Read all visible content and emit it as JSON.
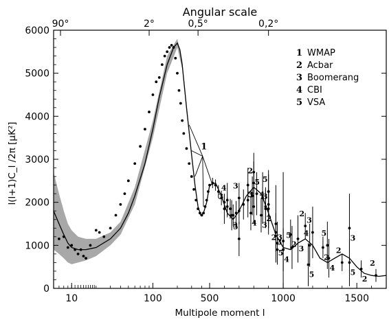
{
  "chart_data": {
    "type": "scatter",
    "title": "Angular scale",
    "xlabel": "Multipole moment l",
    "ylabel": "l(l+1)C_l /2π [μK²]",
    "x_scale": "log-linear (logarithmic below l≈500, linear above)",
    "xlim": [
      6,
      1700
    ],
    "ylim": [
      0,
      6000
    ],
    "x_ticks": [
      {
        "value": 10,
        "label": "10"
      },
      {
        "value": 100,
        "label": "100"
      },
      {
        "value": 500,
        "label": "500"
      },
      {
        "value": 1000,
        "label": "1000"
      },
      {
        "value": 1500,
        "label": "1500"
      }
    ],
    "y_ticks": [
      {
        "value": 0,
        "label": "0"
      },
      {
        "value": 1000,
        "label": "1000"
      },
      {
        "value": 2000,
        "label": "2000"
      },
      {
        "value": 3000,
        "label": "3000"
      },
      {
        "value": 4000,
        "label": "4000"
      },
      {
        "value": 5000,
        "label": "5000"
      },
      {
        "value": 6000,
        "label": "6000"
      }
    ],
    "top_ticks": [
      {
        "value": 2,
        "label": "90°"
      },
      {
        "value": 90,
        "label": "2°"
      },
      {
        "value": 360,
        "label": "0,5°"
      },
      {
        "value": 900,
        "label": "0,2°"
      }
    ],
    "legend": {
      "position": "top-right",
      "entries": [
        {
          "key": "1",
          "name": "WMAP"
        },
        {
          "key": "2",
          "name": "Acbar"
        },
        {
          "key": "3",
          "name": "Boomerang"
        },
        {
          "key": "4",
          "name": "CBI"
        },
        {
          "key": "5",
          "name": "VSA"
        }
      ]
    },
    "model_curve": {
      "x": [
        6,
        7,
        8,
        9,
        10,
        12,
        15,
        20,
        30,
        40,
        50,
        60,
        80,
        100,
        120,
        150,
        180,
        200,
        215,
        230,
        260,
        300,
        330,
        360,
        390,
        420,
        460,
        500,
        540,
        580,
        620,
        660,
        700,
        750,
        800,
        850,
        900,
        950,
        1000,
        1050,
        1100,
        1150,
        1200,
        1250,
        1300,
        1350,
        1400,
        1450,
        1500,
        1550,
        1600,
        1650,
        1700
      ],
      "y": [
        1800,
        1500,
        1250,
        1050,
        950,
        900,
        900,
        950,
        1150,
        1400,
        1750,
        2150,
        2900,
        3700,
        4450,
        5200,
        5600,
        5700,
        5550,
        5200,
        4200,
        3100,
        2400,
        1900,
        1700,
        1750,
        2000,
        2400,
        2450,
        2150,
        1750,
        1600,
        1800,
        2150,
        2350,
        2200,
        1750,
        1250,
        950,
        900,
        1050,
        1150,
        1000,
        700,
        600,
        700,
        800,
        700,
        500,
        350,
        300,
        280,
        300
      ]
    },
    "cosmic_variance_band": {
      "x": [
        6,
        7,
        8,
        9,
        10,
        12,
        15,
        20,
        30,
        40,
        60,
        100,
        150,
        200,
        230,
        260,
        300
      ],
      "upper": [
        2700,
        2200,
        1800,
        1500,
        1350,
        1200,
        1150,
        1150,
        1300,
        1550,
        2350,
        3900,
        5400,
        5800,
        5300,
        4300,
        3150
      ],
      "lower": [
        900,
        800,
        700,
        600,
        560,
        600,
        650,
        750,
        1000,
        1250,
        1950,
        3500,
        5000,
        5600,
        5100,
        4100,
        3050
      ]
    },
    "series": [
      {
        "key": "1",
        "name": "WMAP",
        "x": [
          7,
          8,
          9,
          10,
          11,
          12,
          13,
          14,
          15,
          17,
          20,
          22,
          25,
          30,
          35,
          40,
          45,
          50,
          60,
          70,
          80,
          90,
          100,
          110,
          120,
          130,
          140,
          150,
          160,
          170,
          180,
          190,
          200,
          210,
          220,
          230,
          240,
          260,
          280,
          300,
          320,
          340,
          360,
          380,
          400,
          420,
          440,
          460,
          480,
          500,
          520,
          540,
          560,
          580,
          600,
          620,
          640,
          660,
          680,
          700,
          730,
          760,
          790,
          820,
          860,
          900,
          950,
          1000
        ],
        "y": [
          1150,
          1200,
          950,
          1000,
          900,
          800,
          900,
          750,
          700,
          1000,
          1350,
          1300,
          1200,
          1400,
          1700,
          1950,
          2200,
          2500,
          2900,
          3300,
          3700,
          4100,
          4500,
          4800,
          4900,
          5200,
          5400,
          5500,
          5600,
          5650,
          5600,
          5350,
          5000,
          4600,
          4300,
          3900,
          3600,
          3250,
          2900,
          2600,
          2300,
          2050,
          1850,
          1750,
          1700,
          1750,
          1900,
          2050,
          2250,
          2400,
          2450,
          2400,
          2250,
          2100,
          2000,
          1900,
          1850,
          1700,
          1750,
          1800,
          1950,
          2050,
          2150,
          2200,
          2100,
          1950,
          1500,
          1100
        ],
        "err": [
          700,
          650,
          600,
          550,
          500,
          480,
          460,
          440,
          420,
          380,
          350,
          330,
          300,
          280,
          250,
          230,
          210,
          190,
          170,
          150,
          140,
          130,
          120,
          110,
          100,
          90,
          85,
          80,
          75,
          70,
          70,
          70,
          70,
          70,
          70,
          70,
          70,
          70,
          70,
          70,
          70,
          70,
          70,
          70,
          70,
          70,
          80,
          90,
          100,
          110,
          120,
          130,
          150,
          170,
          190,
          210,
          230,
          250,
          280,
          310,
          350,
          400,
          450,
          500,
          600,
          700,
          900,
          1600
        ]
      },
      {
        "key": "2",
        "name": "Acbar",
        "x": [
          800,
          880,
          960,
          1050,
          1150,
          1270,
          1400,
          1530,
          1630
        ],
        "y": [
          2450,
          1850,
          900,
          1250,
          1450,
          950,
          600,
          450,
          300
        ],
        "err": [
          500,
          450,
          300,
          350,
          300,
          250,
          200,
          200,
          150
        ]
      },
      {
        "key": "3",
        "name": "Boomerang",
        "x": [
          600,
          650,
          700,
          760,
          800,
          850,
          900,
          950,
          1000,
          1100,
          1200,
          1450
        ],
        "y": [
          1850,
          1700,
          2100,
          2400,
          1900,
          1700,
          1850,
          1300,
          900,
          1150,
          1300,
          1400
        ],
        "err": [
          350,
          350,
          350,
          400,
          400,
          400,
          450,
          450,
          500,
          550,
          600,
          800
        ]
      },
      {
        "key": "4",
        "name": "CBI",
        "x": [
          620,
          780,
          880,
          1000,
          1180,
          1310
        ],
        "y": [
          2050,
          1750,
          1900,
          900,
          1000,
          700
        ],
        "err": [
          400,
          400,
          450,
          500,
          500,
          450
        ]
      },
      {
        "key": "5",
        "name": "VSA",
        "x": [
          700,
          800,
          900,
          960,
          1060,
          1170,
          1300,
          1450
        ],
        "y": [
          1150,
          2700,
          2250,
          1050,
          950,
          550,
          1000,
          600
        ],
        "err": [
          400,
          450,
          500,
          500,
          500,
          500,
          550,
          550
        ]
      }
    ],
    "annotation": {
      "label": "1",
      "x": 410,
      "y": 3200,
      "targets": [
        {
          "x": 280,
          "y": 3800
        },
        {
          "x": 300,
          "y": 3200
        },
        {
          "x": 330,
          "y": 2600
        },
        {
          "x": 420,
          "y": 1900
        },
        {
          "x": 520,
          "y": 2400
        }
      ]
    }
  }
}
